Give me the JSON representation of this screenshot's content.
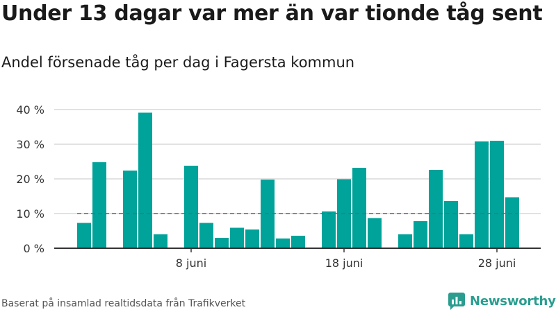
{
  "title": "Under 13 dagar var mer än var tionde tåg sent",
  "subtitle": "Andel försenade tåg per dag i Fagersta kommun",
  "source": "Baserat på insamlad realtidsdata från Trafikverket",
  "brand": "Newsworthy",
  "colors": {
    "bar": "#00a39a",
    "grid": "#d9d9d9",
    "axis": "#333333",
    "reference_line": "#666666",
    "brand": "#2a9d8f"
  },
  "icons": {
    "logo": "newsworthy-logo-icon"
  },
  "chart_data": {
    "type": "bar",
    "x_unit": "day of June",
    "x": [
      1,
      2,
      3,
      4,
      5,
      6,
      7,
      8,
      9,
      10,
      11,
      12,
      13,
      14,
      15,
      16,
      17,
      18,
      19,
      20,
      21,
      22,
      23,
      24,
      25,
      26,
      27,
      28,
      29,
      30
    ],
    "values": [
      7.3,
      24.8,
      null,
      22.4,
      39.1,
      4.0,
      null,
      23.8,
      7.3,
      3.0,
      5.9,
      5.4,
      19.8,
      2.8,
      3.6,
      null,
      10.6,
      19.9,
      23.2,
      8.7,
      null,
      4.0,
      7.8,
      22.6,
      13.6,
      4.0,
      30.8,
      31.0,
      14.7,
      null
    ],
    "ylim": [
      0,
      40
    ],
    "y_ticks": [
      0,
      10,
      20,
      30,
      40
    ],
    "y_tick_labels": [
      "0 %",
      "10 %",
      "20 %",
      "30 %",
      "40 %"
    ],
    "x_ticks": [
      8,
      18,
      28
    ],
    "x_tick_labels": [
      "8 juni",
      "18 juni",
      "28 juni"
    ],
    "reference_line": {
      "y": 10,
      "style": "dashed"
    },
    "grid": true,
    "legend": "none"
  }
}
